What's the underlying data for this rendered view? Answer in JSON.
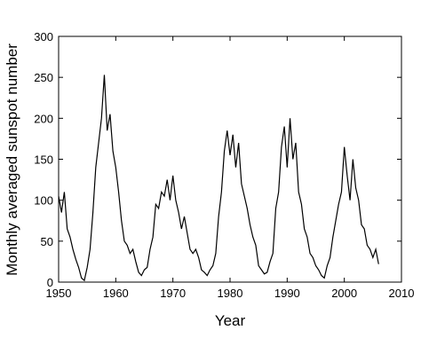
{
  "chart_data": {
    "type": "line",
    "x_label": "Year",
    "y_label": "Monthly averaged sunspot number",
    "xlim": [
      1950,
      2010
    ],
    "xticks": [
      1950,
      1960,
      1970,
      1980,
      1990,
      2000,
      2010
    ],
    "ylim": [
      0,
      300
    ],
    "yticks": [
      0,
      50,
      100,
      150,
      200,
      250,
      300
    ],
    "grid": false,
    "x": [
      1950,
      1950.5,
      1951,
      1951.5,
      1952,
      1952.5,
      1953,
      1953.5,
      1954,
      1954.5,
      1955,
      1955.5,
      1956,
      1956.5,
      1957,
      1957.5,
      1958,
      1958.5,
      1959,
      1959.5,
      1960,
      1960.5,
      1961,
      1961.5,
      1962,
      1962.5,
      1963,
      1963.5,
      1964,
      1964.5,
      1965,
      1965.5,
      1966,
      1966.5,
      1967,
      1967.5,
      1968,
      1968.5,
      1969,
      1969.5,
      1970,
      1970.5,
      1971,
      1971.5,
      1972,
      1972.5,
      1973,
      1973.5,
      1974,
      1974.5,
      1975,
      1975.5,
      1976,
      1976.5,
      1977,
      1977.5,
      1978,
      1978.5,
      1979,
      1979.5,
      1980,
      1980.5,
      1981,
      1981.5,
      1982,
      1982.5,
      1983,
      1983.5,
      1984,
      1984.5,
      1985,
      1985.5,
      1986,
      1986.5,
      1987,
      1987.5,
      1988,
      1988.5,
      1989,
      1989.5,
      1990,
      1990.5,
      1991,
      1991.5,
      1992,
      1992.5,
      1993,
      1993.5,
      1994,
      1994.5,
      1995,
      1995.5,
      1996,
      1996.5,
      1997,
      1997.5,
      1998,
      1998.5,
      1999,
      1999.5,
      2000,
      2000.5,
      2001,
      2001.5,
      2002,
      2002.5,
      2003,
      2003.5,
      2004,
      2004.5,
      2005,
      2005.5,
      2006
    ],
    "series": [
      {
        "color": "#000000",
        "values": [
          105,
          85,
          110,
          65,
          55,
          40,
          28,
          18,
          5,
          2,
          18,
          40,
          85,
          140,
          170,
          200,
          253,
          185,
          205,
          160,
          140,
          110,
          75,
          50,
          45,
          35,
          40,
          25,
          12,
          8,
          15,
          18,
          40,
          55,
          95,
          90,
          110,
          105,
          125,
          100,
          130,
          100,
          85,
          65,
          80,
          60,
          40,
          35,
          40,
          30,
          15,
          12,
          8,
          15,
          20,
          35,
          80,
          110,
          160,
          185,
          155,
          180,
          140,
          170,
          120,
          105,
          90,
          70,
          55,
          45,
          20,
          15,
          10,
          12,
          25,
          35,
          90,
          110,
          165,
          190,
          140,
          200,
          150,
          170,
          110,
          95,
          65,
          55,
          35,
          30,
          20,
          15,
          8,
          5,
          20,
          30,
          55,
          75,
          95,
          110,
          165,
          130,
          100,
          150,
          115,
          100,
          70,
          65,
          45,
          40,
          30,
          40,
          22
        ]
      }
    ]
  }
}
